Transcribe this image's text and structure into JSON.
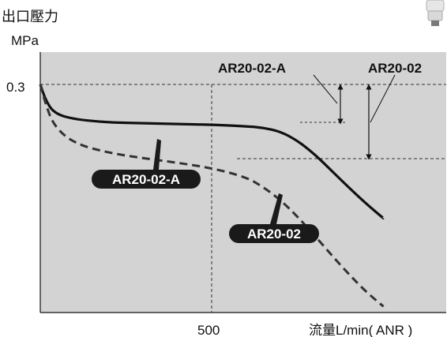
{
  "chart_data": {
    "type": "line",
    "y_axis_title": "出口壓力",
    "y_axis_unit": "MPa",
    "x_axis_title": "流量L/min( ANR )",
    "x_tick_labels": [
      "500"
    ],
    "y_tick_labels": [
      "0.3"
    ],
    "x_range": [
      0,
      1000
    ],
    "y_range": [
      0.0,
      0.3
    ],
    "grid": "dashed reference lines at x=500 and y=0.3",
    "background_color": "#d3d3d3",
    "series": [
      {
        "name": "AR20-02-A",
        "style": "solid",
        "color": "#111111",
        "x": [
          0,
          15,
          40,
          100,
          200,
          300,
          400,
          500,
          600,
          650,
          700,
          750,
          800,
          850,
          900,
          950,
          1000
        ],
        "y": [
          0.3,
          0.28,
          0.262,
          0.254,
          0.25,
          0.249,
          0.248,
          0.247,
          0.245,
          0.243,
          0.238,
          0.226,
          0.208,
          0.186,
          0.164,
          0.143,
          0.124
        ]
      },
      {
        "name": "AR20-02",
        "style": "dashed",
        "color": "#333333",
        "x": [
          0,
          15,
          40,
          100,
          200,
          300,
          400,
          500,
          600,
          650,
          700,
          750,
          800,
          850,
          900,
          950,
          1000
        ],
        "y": [
          0.3,
          0.275,
          0.245,
          0.222,
          0.21,
          0.203,
          0.197,
          0.19,
          0.178,
          0.165,
          0.148,
          0.126,
          0.101,
          0.075,
          0.05,
          0.027,
          0.008
        ]
      }
    ],
    "annotations": [
      {
        "text": "AR20-02-A",
        "type": "bracket-label"
      },
      {
        "text": "AR20-02",
        "type": "bracket-label"
      },
      {
        "text": "AR20-02-A",
        "type": "series-pill"
      },
      {
        "text": "AR20-02",
        "type": "series-pill"
      }
    ]
  }
}
